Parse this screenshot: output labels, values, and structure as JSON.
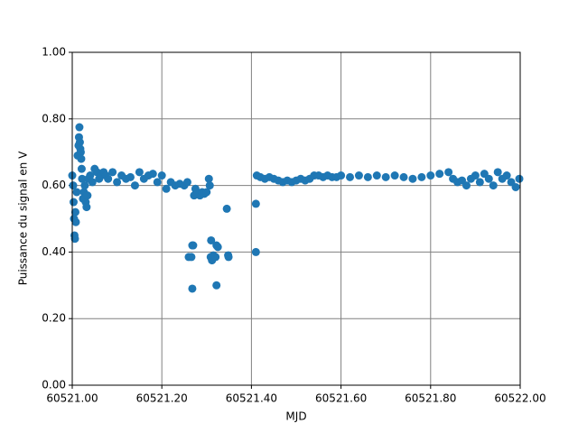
{
  "chart_data": {
    "type": "scatter",
    "xlabel": "MJD",
    "ylabel": "Puissance du signal en V",
    "color": "#1f77b4",
    "grid": true,
    "xlim": [
      60521.0,
      60522.0
    ],
    "xticks": [
      {
        "value": 60521.0,
        "label": "60521.00"
      },
      {
        "value": 60521.2,
        "label": "60521.20"
      },
      {
        "value": 60521.4,
        "label": "60521.40"
      },
      {
        "value": 60521.6,
        "label": "60521.60"
      },
      {
        "value": 60521.8,
        "label": "60521.80"
      },
      {
        "value": 60522.0,
        "label": "60522.00"
      }
    ],
    "ylim": [
      0,
      1
    ],
    "yticks": [
      {
        "value": 0,
        "label": "0.00"
      },
      {
        "value": 0.2,
        "label": "0.20"
      },
      {
        "value": 0.4,
        "label": "0.40"
      },
      {
        "value": 0.6,
        "label": "0.60"
      },
      {
        "value": 0.8,
        "label": "0.80"
      },
      {
        "value": 1,
        "label": "1.00"
      }
    ],
    "series": [
      {
        "x": [
          60521.0,
          60521.002,
          60521.003,
          60521.004,
          60521.005,
          60521.006,
          60521.007,
          60521.008,
          60521.01,
          60521.012,
          60521.014,
          60521.015,
          60521.016,
          60521.017,
          60521.018,
          60521.019,
          60521.02,
          60521.021,
          60521.022,
          60521.024,
          60521.026,
          60521.028,
          60521.03,
          60521.032,
          60521.034,
          60521.036,
          60521.04,
          60521.045,
          60521.05,
          60521.055,
          60521.06,
          60521.065,
          60521.07,
          60521.075,
          60521.08,
          60521.09,
          60521.1,
          60521.11,
          60521.12,
          60521.13,
          60521.14,
          60521.15,
          60521.16,
          60521.17,
          60521.18,
          60521.19,
          60521.2,
          60521.21,
          60521.22,
          60521.23,
          60521.24,
          60521.25,
          60521.257,
          60521.26,
          60521.266,
          60521.268,
          60521.27,
          60521.268,
          60521.272,
          60521.275,
          60521.28,
          60521.285,
          60521.29,
          60521.295,
          60521.3,
          60521.305,
          60521.307,
          60521.309,
          60521.31,
          60521.312,
          60521.315,
          60521.32,
          60521.322,
          60521.325,
          60521.322,
          60521.345,
          60521.348,
          60521.349,
          60521.41,
          60521.41,
          60521.412,
          60521.42,
          60521.43,
          60521.44,
          60521.45,
          60521.46,
          60521.47,
          60521.48,
          60521.49,
          60521.5,
          60521.51,
          60521.52,
          60521.53,
          60521.54,
          60521.55,
          60521.56,
          60521.57,
          60521.58,
          60521.59,
          60521.6,
          60521.62,
          60521.64,
          60521.66,
          60521.68,
          60521.7,
          60521.72,
          60521.74,
          60521.76,
          60521.78,
          60521.8,
          60521.82,
          60521.84,
          60521.85,
          60521.86,
          60521.87,
          60521.88,
          60521.89,
          60521.9,
          60521.91,
          60521.92,
          60521.93,
          60521.94,
          60521.95,
          60521.96,
          60521.97,
          60521.98,
          60521.99,
          60521.998
        ],
        "values": [
          0.63,
          0.6,
          0.55,
          0.5,
          0.45,
          0.44,
          0.52,
          0.49,
          0.58,
          0.69,
          0.72,
          0.745,
          0.775,
          0.73,
          0.71,
          0.7,
          0.68,
          0.65,
          0.62,
          0.56,
          0.58,
          0.6,
          0.55,
          0.535,
          0.57,
          0.62,
          0.63,
          0.61,
          0.65,
          0.64,
          0.62,
          0.63,
          0.64,
          0.63,
          0.62,
          0.64,
          0.61,
          0.63,
          0.62,
          0.625,
          0.6,
          0.64,
          0.62,
          0.63,
          0.635,
          0.61,
          0.63,
          0.59,
          0.61,
          0.6,
          0.605,
          0.6,
          0.61,
          0.385,
          0.385,
          0.42,
          0.42,
          0.29,
          0.57,
          0.59,
          0.575,
          0.57,
          0.58,
          0.575,
          0.58,
          0.62,
          0.6,
          0.385,
          0.435,
          0.375,
          0.39,
          0.385,
          0.42,
          0.415,
          0.3,
          0.53,
          0.39,
          0.385,
          0.545,
          0.4,
          0.63,
          0.625,
          0.62,
          0.625,
          0.62,
          0.615,
          0.61,
          0.615,
          0.61,
          0.615,
          0.62,
          0.615,
          0.62,
          0.63,
          0.63,
          0.625,
          0.63,
          0.625,
          0.625,
          0.63,
          0.625,
          0.63,
          0.625,
          0.63,
          0.625,
          0.63,
          0.625,
          0.62,
          0.625,
          0.63,
          0.635,
          0.64,
          0.62,
          0.61,
          0.615,
          0.6,
          0.62,
          0.63,
          0.61,
          0.635,
          0.62,
          0.6,
          0.64,
          0.62,
          0.63,
          0.61,
          0.595,
          0.62
        ]
      }
    ]
  }
}
